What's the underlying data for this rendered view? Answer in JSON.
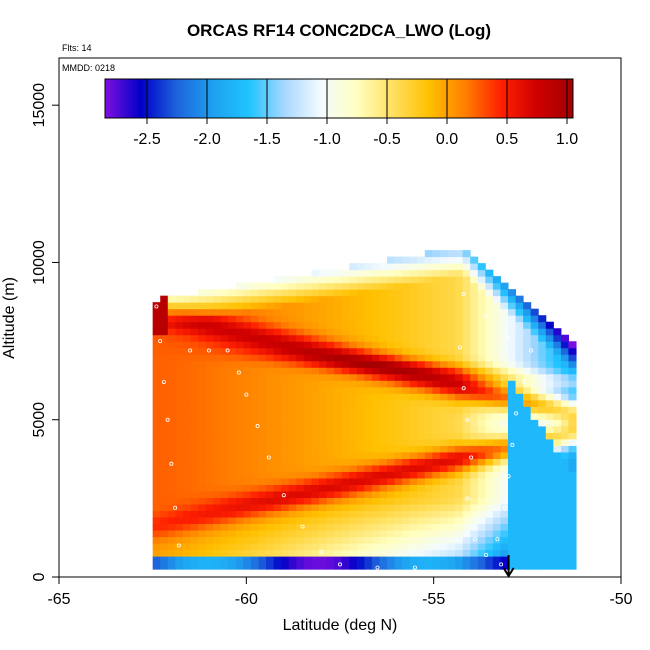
{
  "chart_data": {
    "type": "heatmap",
    "title": "ORCAS RF14 CONC2DCA_LWO (Log)",
    "annotations": [
      "Flts: 14",
      "MMDD: 0218"
    ],
    "xlabel": "Latitude (deg N)",
    "ylabel": "Altitude (m)",
    "xlim": [
      -65,
      -50
    ],
    "ylim": [
      0,
      16500
    ],
    "x_ticks": [
      -65,
      -60,
      -55,
      -50
    ],
    "y_ticks": [
      0,
      5000,
      10000,
      15000
    ],
    "x_tick_labels": [
      "-65",
      "-60",
      "-55",
      "-50"
    ],
    "y_tick_labels": [
      "0",
      "5000",
      "10000",
      "15000"
    ],
    "grid": false,
    "colorbar": {
      "range": [
        -2.85,
        1.05
      ],
      "ticks": [
        -2.5,
        -2.0,
        -1.5,
        -1.0,
        -0.5,
        0.0,
        0.5,
        1.0
      ],
      "tick_labels": [
        "-2.5",
        "-2.0",
        "-1.5",
        "-1.0",
        "-0.5",
        "0.0",
        "0.5",
        "1.0"
      ],
      "colors": [
        "#7f10e0",
        "#0000c8",
        "#1e64dc",
        "#1ea0f0",
        "#20c4ff",
        "#a8d8ff",
        "#f4fbff",
        "#ffffc0",
        "#ffe060",
        "#ffc000",
        "#ff8000",
        "#ff2000",
        "#d00000",
        "#a00000"
      ],
      "placement": "top-inside"
    },
    "domain": {
      "lat_min": -62.5,
      "lat_max": -51.2,
      "alt_min": 250,
      "alt_max": 10600
    },
    "flight_track": [
      [
        -62.4,
        8600
      ],
      [
        -62.3,
        7500
      ],
      [
        -62.2,
        6200
      ],
      [
        -62.1,
        5000
      ],
      [
        -62.0,
        3600
      ],
      [
        -61.9,
        2200
      ],
      [
        -61.8,
        1000
      ],
      [
        -61.5,
        7200
      ],
      [
        -61.0,
        7200
      ],
      [
        -60.5,
        7200
      ],
      [
        -60.2,
        6500
      ],
      [
        -60.0,
        5800
      ],
      [
        -59.7,
        4800
      ],
      [
        -59.4,
        3800
      ],
      [
        -59.0,
        2600
      ],
      [
        -58.5,
        1600
      ],
      [
        -58.0,
        800
      ],
      [
        -57.5,
        400
      ],
      [
        -56.5,
        300
      ],
      [
        -55.5,
        300
      ],
      [
        -54.3,
        7300
      ],
      [
        -54.2,
        6000
      ],
      [
        -54.1,
        5000
      ],
      [
        -54.0,
        3800
      ],
      [
        -54.1,
        2500
      ],
      [
        -53.9,
        1200
      ],
      [
        -53.6,
        700
      ],
      [
        -53.2,
        400
      ],
      [
        -54.2,
        9000
      ],
      [
        -53.6,
        8300
      ],
      [
        -53.0,
        7600
      ],
      [
        -52.4,
        7200
      ],
      [
        -52.6,
        6200
      ],
      [
        -52.8,
        5200
      ],
      [
        -52.9,
        4200
      ],
      [
        -53.0,
        3200
      ],
      [
        -53.1,
        2200
      ],
      [
        -53.3,
        1200
      ]
    ],
    "marker": {
      "lat": -53.0,
      "label": "arrow"
    }
  }
}
